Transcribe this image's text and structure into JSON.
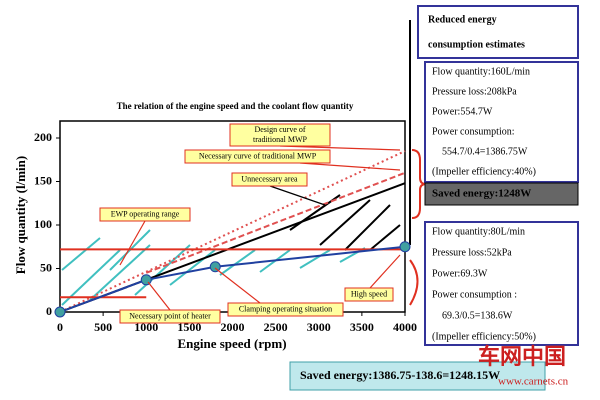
{
  "chart_data": {
    "type": "line",
    "title": "The relation of the engine speed and the coolant flow  quantity",
    "xlabel": "Engine speed (rpm)",
    "ylabel": "Flow quantity (l/min)",
    "xlim": [
      0,
      4000
    ],
    "xticks": [
      0,
      500,
      1000,
      1500,
      2000,
      2500,
      3000,
      3500,
      4000
    ],
    "ylim": [
      0,
      200
    ],
    "yticks": [
      0,
      50,
      100,
      150,
      200
    ],
    "series": [
      {
        "color": "#e05050",
        "style": "dotted",
        "x": [
          0,
          4000
        ],
        "values": [
          0,
          185
        ]
      },
      {
        "color": "#e05050",
        "style": "dashed",
        "x": [
          1000,
          4000
        ],
        "values": [
          45,
          160
        ]
      },
      {
        "color": "#000000",
        "style": "solid",
        "x": [
          0,
          4000
        ],
        "values": [
          0,
          148
        ]
      },
      {
        "color": "#e03020",
        "style": "solid",
        "x": [
          0,
          4000
        ],
        "values": [
          72,
          72
        ]
      },
      {
        "color": "#e03020",
        "style": "solid",
        "x": [
          0,
          1000
        ],
        "values": [
          17,
          17
        ]
      },
      {
        "color": "#2040a0",
        "style": "solid",
        "markers": true,
        "x": [
          0,
          1000,
          1800,
          4000
        ],
        "values": [
          0,
          37,
          52,
          75
        ]
      }
    ],
    "annotations": [
      "Design curve of traditional MWP",
      "Necessary curve of traditional MWP",
      "Unnecessary area",
      "EWP operating range",
      "Clamping operating situation",
      "High speed",
      "Necessary  point of heater"
    ]
  },
  "panels": {
    "estimate_title": [
      "Reduced energy",
      "consumption estimates"
    ],
    "mwp": [
      "Flow quantity:160L/min",
      "Pressure loss:208kPa",
      "Power:554.7W",
      "Power consumption:",
      "554.7/0.4=1386.75W",
      "(Impeller efficiency:40%)"
    ],
    "saved_mwp": "Saved energy:1248W",
    "ewp": [
      "Flow quantity:80L/min",
      "Pressure loss:52kPa",
      "Power:69.3W",
      "Power consumption :",
      "69.3/0.5=138.6W",
      "(Impeller efficiency:50%)"
    ],
    "saved_total": "Saved energy:1386.75-138.6=1248.15W",
    "watermark": [
      "车网中国",
      "www.carnets.cn"
    ]
  }
}
